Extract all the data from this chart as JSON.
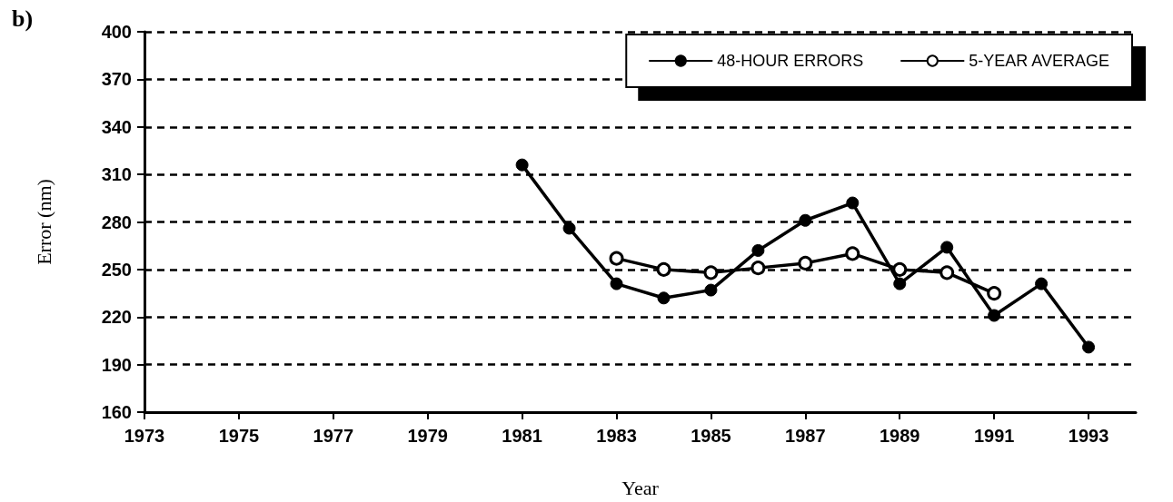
{
  "chart_data": {
    "type": "line",
    "title": "b)",
    "xlabel": "Year",
    "ylabel": "Error (nm)",
    "xlim": [
      1973,
      1994
    ],
    "xticks": [
      1973,
      1975,
      1977,
      1979,
      1981,
      1983,
      1985,
      1987,
      1989,
      1991,
      1993
    ],
    "ylim": [
      160,
      400
    ],
    "yticks": [
      160,
      190,
      220,
      250,
      280,
      310,
      340,
      370,
      400
    ],
    "grid": "y",
    "legend": "top right",
    "marker": "circle",
    "line_style": "solid",
    "series": [
      {
        "name": "48-HOUR ERRORS",
        "color": "#000000",
        "x": [
          1981,
          1982,
          1983,
          1984,
          1985,
          1986,
          1987,
          1988,
          1989,
          1990,
          1991,
          1992,
          1993
        ],
        "values": [
          316,
          276,
          241,
          232,
          237,
          262,
          281,
          292,
          241,
          264,
          221,
          241,
          201
        ]
      },
      {
        "name": "5-YEAR AVERAGE",
        "color": "#000000",
        "x": [
          1983,
          1984,
          1985,
          1986,
          1987,
          1988,
          1989,
          1990,
          1991
        ],
        "values": [
          257,
          250,
          248,
          251,
          254,
          260,
          250,
          248,
          235
        ]
      }
    ]
  }
}
